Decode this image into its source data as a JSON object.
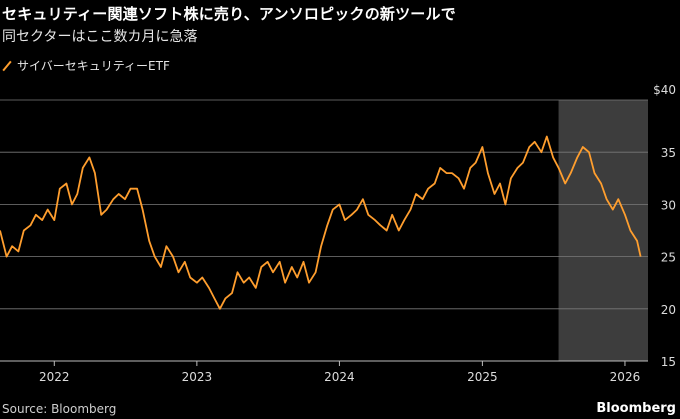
{
  "header": {
    "title": "セキュリティー関連ソフト株に売り、アンソロピックの新ツールで",
    "subtitle": "同セクターはここ数カ月に急落"
  },
  "footer": {
    "source": "Source: Bloomberg",
    "brand": "Bloomberg"
  },
  "colors": {
    "series": "#ff9e2e",
    "highlight": "#3d3d3d",
    "grid": "#7a7a7a"
  },
  "chart_data": {
    "type": "line",
    "title": "",
    "xlabel": "",
    "ylabel": "",
    "legend": "top-left",
    "grid": true,
    "y_ticks": [
      "$40",
      "35",
      "30",
      "25",
      "20",
      "15"
    ],
    "y_tick_values": [
      40,
      35,
      30,
      25,
      20,
      15
    ],
    "ylim": [
      15,
      40
    ],
    "x_ticks": [
      "2022",
      "2023",
      "2024",
      "2025",
      "2026"
    ],
    "x_tick_values": [
      "2022-01-01",
      "2023-01-01",
      "2024-01-01",
      "2025-01-01",
      "2026-01-01"
    ],
    "xlim": [
      "2021-08-15",
      "2026-03-01"
    ],
    "shaded_region": [
      "2025-07-15",
      "2026-03-01"
    ],
    "series": [
      {
        "name": "サイバーセキュリティーETF",
        "x": [
          "2021-08-15",
          "2021-09-01",
          "2021-09-15",
          "2021-10-01",
          "2021-10-15",
          "2021-11-01",
          "2021-11-15",
          "2021-12-01",
          "2021-12-15",
          "2022-01-01",
          "2022-01-15",
          "2022-02-01",
          "2022-02-15",
          "2022-03-01",
          "2022-03-15",
          "2022-04-01",
          "2022-04-15",
          "2022-05-01",
          "2022-05-15",
          "2022-06-01",
          "2022-06-15",
          "2022-07-01",
          "2022-07-15",
          "2022-08-01",
          "2022-08-15",
          "2022-09-01",
          "2022-09-15",
          "2022-10-01",
          "2022-10-15",
          "2022-11-01",
          "2022-11-15",
          "2022-12-01",
          "2022-12-15",
          "2023-01-01",
          "2023-01-15",
          "2023-02-01",
          "2023-02-15",
          "2023-03-01",
          "2023-03-15",
          "2023-04-01",
          "2023-04-15",
          "2023-05-01",
          "2023-05-15",
          "2023-06-01",
          "2023-06-15",
          "2023-07-01",
          "2023-07-15",
          "2023-08-01",
          "2023-08-15",
          "2023-09-01",
          "2023-09-15",
          "2023-10-01",
          "2023-10-15",
          "2023-11-01",
          "2023-11-15",
          "2023-12-01",
          "2023-12-15",
          "2024-01-01",
          "2024-01-15",
          "2024-02-01",
          "2024-02-15",
          "2024-03-01",
          "2024-03-15",
          "2024-04-01",
          "2024-04-15",
          "2024-05-01",
          "2024-05-15",
          "2024-06-01",
          "2024-06-15",
          "2024-07-01",
          "2024-07-15",
          "2024-08-01",
          "2024-08-15",
          "2024-09-01",
          "2024-09-15",
          "2024-10-01",
          "2024-10-15",
          "2024-11-01",
          "2024-11-15",
          "2024-12-01",
          "2024-12-15",
          "2025-01-01",
          "2025-01-15",
          "2025-02-01",
          "2025-02-15",
          "2025-03-01",
          "2025-03-15",
          "2025-04-01",
          "2025-04-15",
          "2025-05-01",
          "2025-05-15",
          "2025-06-01",
          "2025-06-15",
          "2025-07-01",
          "2025-07-15",
          "2025-08-01",
          "2025-08-15",
          "2025-09-01",
          "2025-09-15",
          "2025-10-01",
          "2025-10-15",
          "2025-11-01",
          "2025-11-15",
          "2025-12-01",
          "2025-12-15",
          "2026-01-01",
          "2026-01-15",
          "2026-02-01",
          "2026-02-10"
        ],
        "values": [
          27.5,
          25.0,
          26.0,
          25.5,
          27.5,
          28.0,
          29.0,
          28.5,
          29.5,
          28.5,
          31.5,
          32.0,
          30.0,
          31.0,
          33.5,
          34.5,
          33.0,
          29.0,
          29.5,
          30.5,
          31.0,
          30.5,
          31.5,
          31.5,
          29.5,
          26.5,
          25.0,
          24.0,
          26.0,
          25.0,
          23.5,
          24.5,
          23.0,
          22.5,
          23.0,
          22.0,
          21.0,
          20.0,
          21.0,
          21.5,
          23.5,
          22.5,
          23.0,
          22.0,
          24.0,
          24.5,
          23.5,
          24.5,
          22.5,
          24.0,
          23.0,
          24.5,
          22.5,
          23.5,
          26.0,
          28.0,
          29.5,
          30.0,
          28.5,
          29.0,
          29.5,
          30.5,
          29.0,
          28.5,
          28.0,
          27.5,
          29.0,
          27.5,
          28.5,
          29.5,
          31.0,
          30.5,
          31.5,
          32.0,
          33.5,
          33.0,
          33.0,
          32.5,
          31.5,
          33.5,
          34.0,
          35.5,
          33.0,
          31.0,
          32.0,
          30.0,
          32.5,
          33.5,
          34.0,
          35.5,
          36.0,
          35.0,
          36.5,
          34.5,
          33.5,
          32.0,
          33.0,
          34.5,
          35.5,
          35.0,
          33.0,
          32.0,
          30.5,
          29.5,
          30.5,
          29.0,
          27.5,
          26.5,
          25.0
        ]
      }
    ]
  }
}
